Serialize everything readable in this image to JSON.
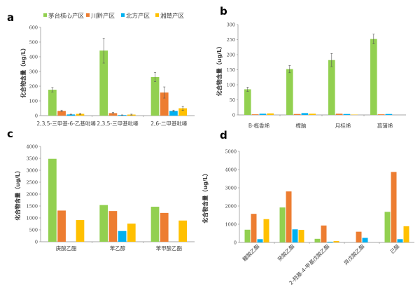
{
  "legend": [
    "茅台核心产区",
    "川黔产区",
    "北方产区",
    "湘楚产区"
  ],
  "colors": [
    "#92d050",
    "#ed7d31",
    "#00b0f0",
    "#ffc000"
  ],
  "chart_data": [
    {
      "panel": "a",
      "type": "bar",
      "ylabel": "化合物含量（ug/L）",
      "ylim": [
        0,
        600
      ],
      "yticks": [
        0,
        100,
        200,
        300,
        400,
        500,
        600
      ],
      "categories": [
        "2,3,5-三甲基-6-乙基吡嗪",
        "2,3,5-三甲基吡嗪",
        "2,6-二甲基吡嗪"
      ],
      "series": [
        {
          "name": "茅台核心产区",
          "values": [
            176,
            442,
            262
          ],
          "errors": [
            15,
            85,
            32
          ]
        },
        {
          "name": "川黔产区",
          "values": [
            32,
            17,
            157
          ],
          "errors": [
            5,
            5,
            38
          ]
        },
        {
          "name": "北方产区",
          "values": [
            8,
            4,
            32
          ],
          "errors": [
            2,
            1,
            5
          ]
        },
        {
          "name": "湘楚产区",
          "values": [
            12,
            7,
            50
          ],
          "errors": [
            4,
            3,
            15
          ]
        }
      ]
    },
    {
      "panel": "b",
      "type": "bar",
      "ylabel": "化合物含量（ug/L）",
      "ylim": [
        0,
        300
      ],
      "yticks": [
        0,
        50,
        100,
        150,
        200,
        250,
        300
      ],
      "categories": [
        "B-榄香烯",
        "樟脑",
        "月桂烯",
        "菖蒲烯"
      ],
      "series": [
        {
          "name": "茅台核心产区",
          "values": [
            85,
            152,
            182,
            252
          ],
          "errors": [
            7,
            12,
            22,
            16
          ]
        },
        {
          "name": "川黔产区",
          "values": [
            2,
            3,
            4,
            2
          ],
          "errors": [
            0,
            0,
            0,
            0
          ]
        },
        {
          "name": "北方产区",
          "values": [
            4,
            6,
            3,
            3
          ],
          "errors": [
            0,
            0,
            0,
            0
          ]
        },
        {
          "name": "湘楚产区",
          "values": [
            5,
            4,
            1,
            0
          ],
          "errors": [
            0,
            0,
            0,
            0
          ]
        }
      ]
    },
    {
      "panel": "c",
      "type": "bar",
      "ylabel": "化合物含量（ug/L）",
      "ylim": [
        0,
        4000
      ],
      "yticks": [
        0,
        500,
        1000,
        1500,
        2000,
        2500,
        3000,
        3500,
        4000
      ],
      "categories": [
        "庚酸乙酯",
        "苯乙醇",
        "苯甲酸乙酯"
      ],
      "series": [
        {
          "name": "茅台核心产区",
          "values": [
            3480,
            1540,
            1470
          ]
        },
        {
          "name": "川黔产区",
          "values": [
            1310,
            1290,
            1210
          ]
        },
        {
          "name": "北方产区",
          "values": [
            0,
            450,
            0
          ]
        },
        {
          "name": "湘楚产区",
          "values": [
            910,
            760,
            890
          ]
        }
      ]
    },
    {
      "panel": "d",
      "type": "bar",
      "ylabel": "化合物含量（ug/L）",
      "ylim": [
        0,
        5000
      ],
      "yticks": [
        0,
        1000,
        2000,
        3000,
        4000,
        5000
      ],
      "categories": [
        "糠酸乙酯",
        "癸酸乙酯",
        "2-羟基-4-甲基戊酸乙酯",
        "异戊酸乙酯",
        "己酸"
      ],
      "series": [
        {
          "name": "茅台核心产区",
          "values": [
            700,
            1920,
            200,
            0,
            1680
          ]
        },
        {
          "name": "川黔产区",
          "values": [
            1570,
            2800,
            930,
            590,
            3870
          ]
        },
        {
          "name": "北方产区",
          "values": [
            180,
            720,
            40,
            250,
            180
          ]
        },
        {
          "name": "湘楚产区",
          "values": [
            1280,
            690,
            80,
            0,
            890
          ]
        }
      ]
    }
  ]
}
